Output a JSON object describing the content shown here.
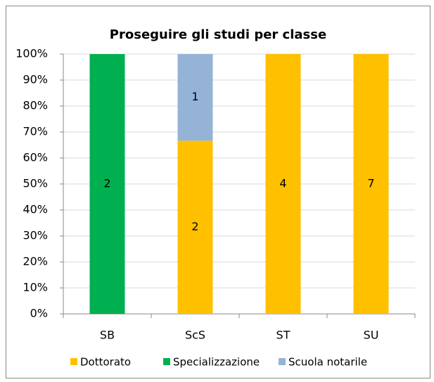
{
  "chart_data": {
    "type": "bar",
    "stacking": "percent",
    "title": "Proseguire gli studi per classe",
    "categories": [
      "SB",
      "ScS",
      "ST",
      "SU"
    ],
    "series": [
      {
        "name": "Dottorato",
        "color": "#ffc000",
        "values": [
          null,
          2,
          4,
          7
        ]
      },
      {
        "name": "Specializzazione",
        "color": "#00b050",
        "values": [
          2,
          null,
          null,
          null
        ]
      },
      {
        "name": "Scuola notarile",
        "color": "#95b3d7",
        "values": [
          null,
          1,
          null,
          null
        ]
      }
    ],
    "ylim": [
      0,
      100
    ],
    "yticks": [
      {
        "value": 0,
        "label": "0%"
      },
      {
        "value": 10,
        "label": "10%"
      },
      {
        "value": 20,
        "label": "20%"
      },
      {
        "value": 30,
        "label": "30%"
      },
      {
        "value": 40,
        "label": "40%"
      },
      {
        "value": 50,
        "label": "50%"
      },
      {
        "value": 60,
        "label": "60%"
      },
      {
        "value": 70,
        "label": "70%"
      },
      {
        "value": 80,
        "label": "80%"
      },
      {
        "value": 90,
        "label": "90%"
      },
      {
        "value": 100,
        "label": "100%"
      }
    ],
    "grid": true,
    "legend": "bottom"
  }
}
